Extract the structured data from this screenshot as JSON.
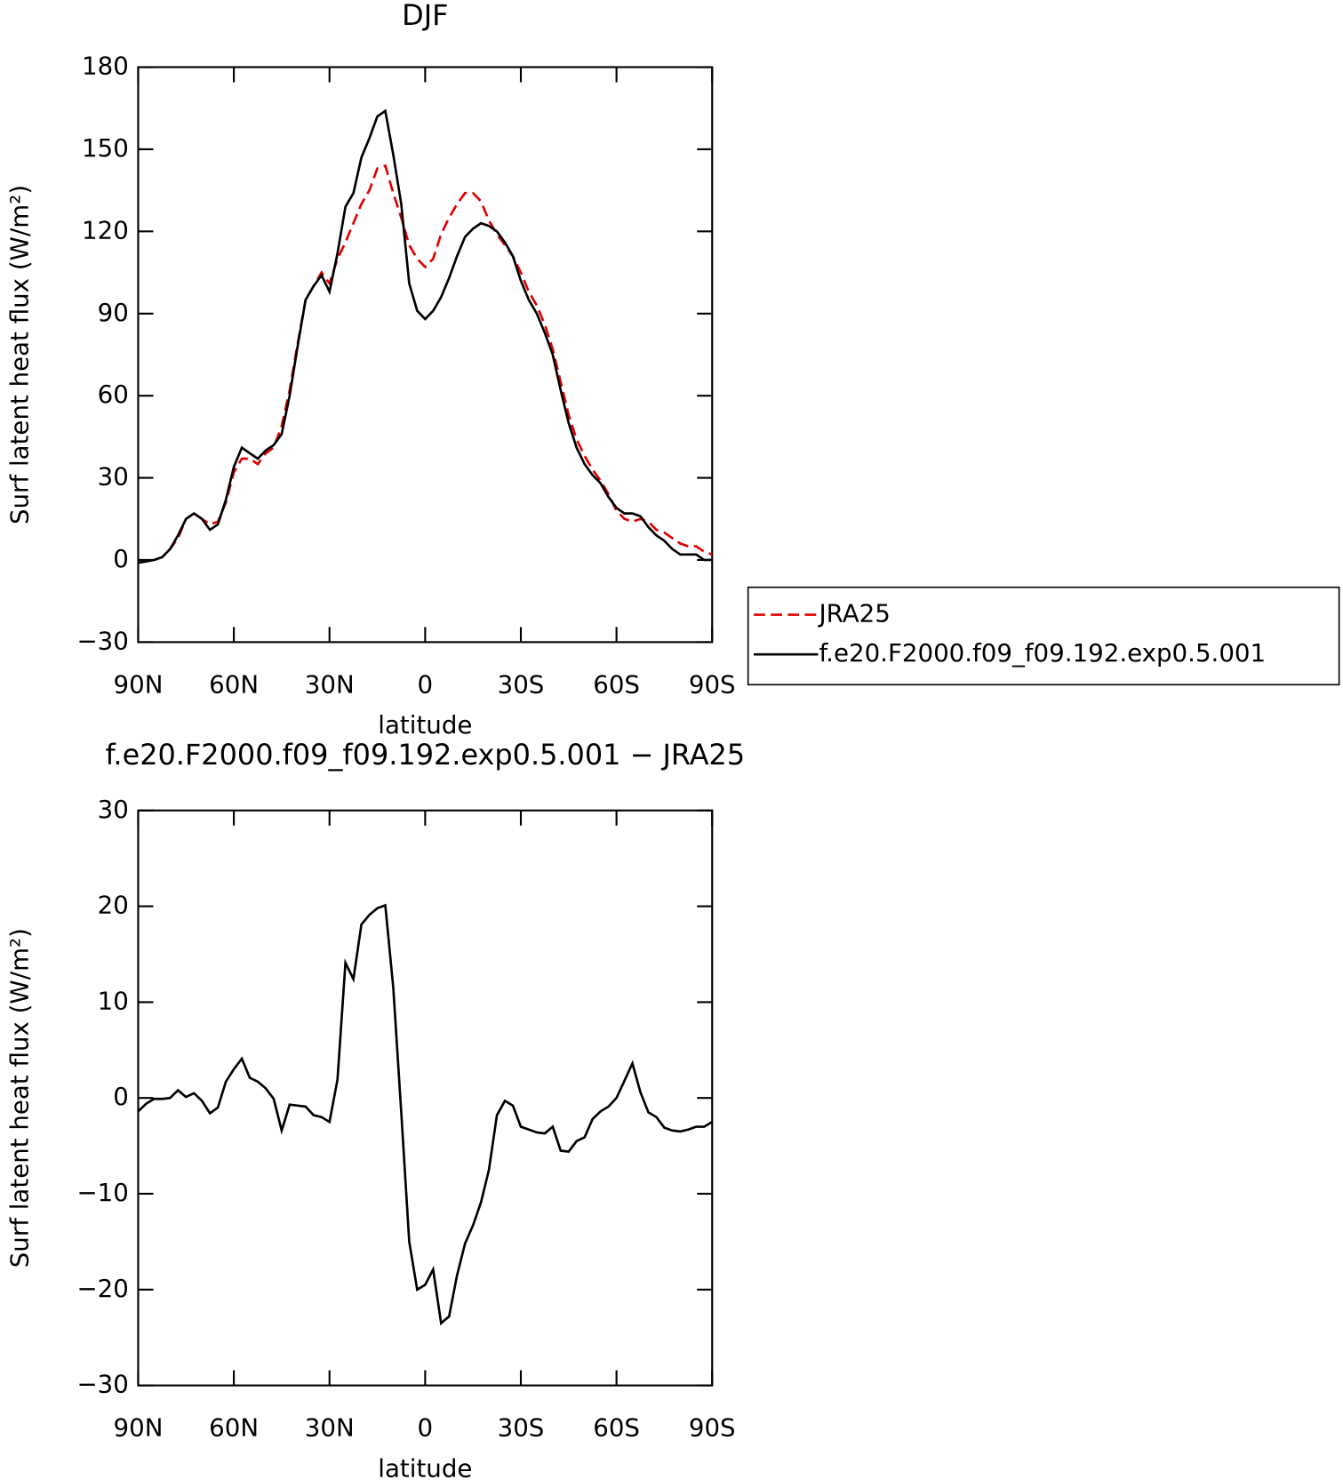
{
  "chart_data": [
    {
      "type": "line",
      "title": "DJF",
      "xlabel": "latitude",
      "ylabel": "Surf latent heat flux (W/m²)",
      "x": [
        90,
        87.5,
        85,
        82.5,
        80,
        77.5,
        75,
        72.5,
        70,
        67.5,
        65,
        62.5,
        60,
        57.5,
        55,
        52.5,
        50,
        47.5,
        45,
        42.5,
        40,
        37.5,
        35,
        32.5,
        30,
        27.5,
        25,
        22.5,
        20,
        17.5,
        15,
        12.5,
        10,
        7.5,
        5,
        2.5,
        0,
        -2.5,
        -5,
        -7.5,
        -10,
        -12.5,
        -15,
        -17.5,
        -20,
        -22.5,
        -25,
        -27.5,
        -30,
        -32.5,
        -35,
        -37.5,
        -40,
        -42.5,
        -45,
        -47.5,
        -50,
        -52.5,
        -55,
        -57.5,
        -60,
        -62.5,
        -65,
        -67.5,
        -70,
        -72.5,
        -75,
        -77.5,
        -80,
        -82.5,
        -85,
        -87.5,
        -90
      ],
      "series": [
        {
          "name": "JRA25",
          "color": "#e00000",
          "linestyle": "dashed",
          "values": [
            -1,
            -0.5,
            0,
            1,
            4,
            8,
            15,
            17,
            15,
            13,
            14,
            21,
            32,
            37,
            37,
            35,
            39,
            41,
            49,
            62,
            79,
            95,
            100,
            105,
            101,
            110,
            116,
            123,
            130,
            135,
            143,
            144,
            134,
            125,
            115,
            110,
            107,
            110,
            119,
            125,
            130,
            134,
            134,
            131,
            124,
            119,
            115,
            111,
            105,
            98,
            93,
            86,
            77,
            65,
            53,
            44,
            38,
            33,
            29,
            24,
            18,
            15,
            14,
            15,
            14,
            11,
            10,
            8,
            6,
            5,
            5,
            3,
            2
          ]
        },
        {
          "name": "f.e20.F2000.f09_f09.192.exp0.5.001",
          "color": "#000000",
          "linestyle": "solid",
          "values": [
            -1,
            -0.5,
            0,
            1,
            4,
            9,
            15,
            17,
            15,
            11,
            13,
            22,
            34,
            41,
            39,
            37,
            40,
            42,
            46,
            60,
            78,
            95,
            100,
            104,
            98,
            112,
            129,
            134,
            147,
            154,
            162,
            164,
            148,
            130,
            101,
            91,
            88,
            91,
            96,
            103,
            111,
            118,
            121,
            123,
            122,
            120,
            116,
            111,
            102,
            95,
            90,
            83,
            75,
            62,
            50,
            41,
            35,
            31,
            28,
            23,
            19,
            17,
            17,
            16,
            12,
            9,
            7,
            4,
            2,
            2,
            2,
            0,
            0
          ]
        }
      ],
      "xlim": [
        90,
        -90
      ],
      "xticks": [
        {
          "value": 90,
          "label": "90N"
        },
        {
          "value": 60,
          "label": "60N"
        },
        {
          "value": 30,
          "label": "30N"
        },
        0,
        {
          "value": -30,
          "label": "30S"
        },
        {
          "value": -60,
          "label": "60S"
        },
        {
          "value": -90,
          "label": "90S"
        }
      ],
      "ylim": [
        -30,
        180
      ],
      "yticks": [
        {
          "value": -30,
          "label": "−30"
        },
        0,
        30,
        60,
        90,
        120,
        150,
        180
      ],
      "legend": "right"
    },
    {
      "type": "line",
      "title": "f.e20.F2000.f09_f09.192.exp0.5.001 − JRA25",
      "xlabel": "latitude",
      "ylabel": "Surf latent heat flux (W/m²)",
      "x": [
        90,
        87.5,
        85,
        82.5,
        80,
        77.5,
        75,
        72.5,
        70,
        67.5,
        65,
        62.5,
        60,
        57.5,
        55,
        52.5,
        50,
        47.5,
        45,
        42.5,
        40,
        37.5,
        35,
        32.5,
        30,
        27.5,
        25,
        22.5,
        20,
        17.5,
        15,
        12.5,
        10,
        7.5,
        5,
        2.5,
        0,
        -2.5,
        -5,
        -7.5,
        -10,
        -12.5,
        -15,
        -17.5,
        -20,
        -22.5,
        -25,
        -27.5,
        -30,
        -32.5,
        -35,
        -37.5,
        -40,
        -42.5,
        -45,
        -47.5,
        -50,
        -52.5,
        -55,
        -57.5,
        -60,
        -62.5,
        -65,
        -67.5,
        -70,
        -72.5,
        -75,
        -77.5,
        -80,
        -82.5,
        -85,
        -87.5,
        -90
      ],
      "series": [
        {
          "color": "#000000",
          "linestyle": "solid",
          "values": [
            -1.4,
            -0.6,
            -0.1,
            -0.1,
            0,
            0.8,
            0.1,
            0.5,
            -0.3,
            -1.6,
            -1,
            1.7,
            3,
            4.1,
            2.1,
            1.7,
            1,
            -0.1,
            -3.4,
            -0.7,
            -0.8,
            -0.9,
            -1.8,
            -2,
            -2.5,
            1.9,
            14.1,
            12.4,
            18.1,
            19.1,
            19.8,
            20.1,
            11.5,
            -1.5,
            -15,
            -20,
            -19.5,
            -17.9,
            -23.5,
            -22.8,
            -18.5,
            -15.2,
            -13.3,
            -10.9,
            -7.5,
            -1.8,
            -0.3,
            -0.8,
            -3,
            -3.3,
            -3.6,
            -3.7,
            -3,
            -5.5,
            -5.6,
            -4.5,
            -4.1,
            -2.2,
            -1.4,
            -0.9,
            0,
            1.8,
            3.6,
            0.6,
            -1.5,
            -2,
            -3.1,
            -3.4,
            -3.5,
            -3.3,
            -3,
            -3,
            -2.5
          ]
        }
      ],
      "xlim": [
        90,
        -90
      ],
      "xticks": [
        {
          "value": 90,
          "label": "90N"
        },
        {
          "value": 60,
          "label": "60N"
        },
        {
          "value": 30,
          "label": "30N"
        },
        0,
        {
          "value": -30,
          "label": "30S"
        },
        {
          "value": -60,
          "label": "60S"
        },
        {
          "value": -90,
          "label": "90S"
        }
      ],
      "ylim": [
        -30,
        30
      ],
      "yticks": [
        {
          "value": -30,
          "label": "−30"
        },
        {
          "value": -20,
          "label": "−20"
        },
        {
          "value": -10,
          "label": "−10"
        },
        0,
        10,
        20,
        30
      ]
    }
  ]
}
